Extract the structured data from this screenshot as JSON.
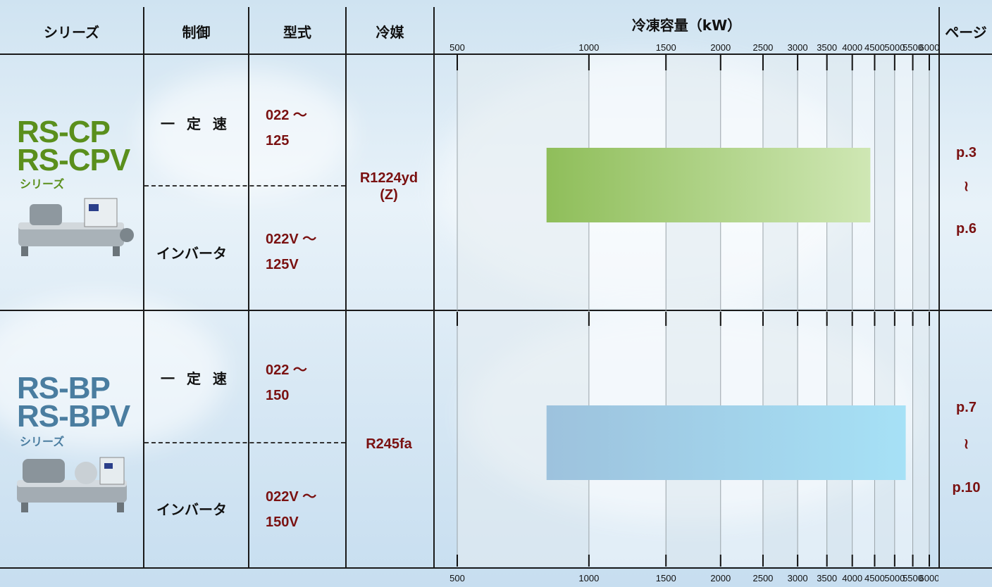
{
  "headers": {
    "series": "シリーズ",
    "control": "制御",
    "model": "型式",
    "refrigerant": "冷媒",
    "capacity": "冷凍容量（kW）",
    "page": "ページ"
  },
  "rows": [
    {
      "name_line1": "RS-CP",
      "name_line2": "RS-CPV",
      "series_label": "シリーズ",
      "control_fixed": "一 定 速",
      "control_inverter": "インバータ",
      "model_fixed_line1": "022 〜",
      "model_fixed_line2": "125",
      "model_inverter_line1": "022V 〜",
      "model_inverter_line2": "125V",
      "refrigerant_line1": "R1224yd",
      "refrigerant_line2": "(Z)",
      "page_start": "p.3",
      "page_sep": "≀",
      "page_end": "p.6",
      "color": "#5a8f1c"
    },
    {
      "name_line1": "RS-BP",
      "name_line2": "RS-BPV",
      "series_label": "シリーズ",
      "control_fixed": "一 定 速",
      "control_inverter": "インバータ",
      "model_fixed_line1": "022 〜",
      "model_fixed_line2": "150",
      "model_inverter_line1": "022V 〜",
      "model_inverter_line2": "150V",
      "refrigerant_line1": "R245fa",
      "refrigerant_line2": "",
      "page_start": "p.7",
      "page_sep": "≀",
      "page_end": "p.10",
      "color": "#4a7da0"
    }
  ],
  "chart_data": {
    "type": "bar",
    "orientation": "horizontal",
    "x_scale": "log",
    "xlabel": "冷凍容量（kW）",
    "ticks": [
      500,
      1000,
      1500,
      2000,
      2500,
      3000,
      3500,
      4000,
      4500,
      5000,
      5500,
      6000
    ],
    "xlim": [
      500,
      6000
    ],
    "series": [
      {
        "name": "RS-CP/RS-CPV",
        "range": [
          800,
          4400
        ],
        "colors": [
          "#8fbe5a",
          "#cfe7b4"
        ]
      },
      {
        "name": "RS-BP/RS-BPV",
        "range": [
          800,
          5300
        ],
        "colors": [
          "#9dc2dd",
          "#a6e1f6"
        ]
      }
    ]
  }
}
